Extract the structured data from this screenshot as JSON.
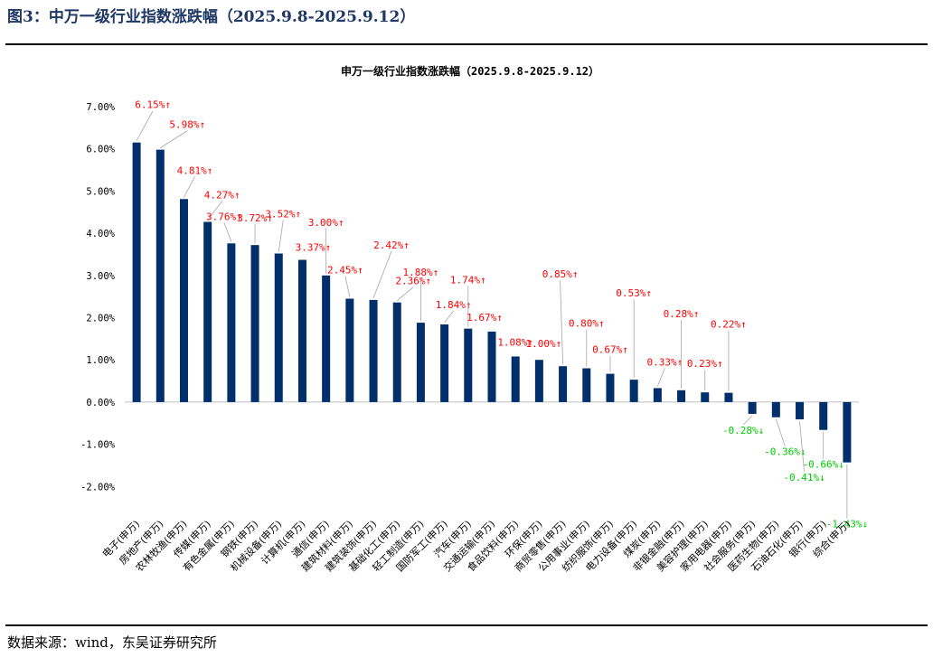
{
  "figure": {
    "title": "图3：中万一级行业指数涨跌幅（2025.9.8-2025.9.12）",
    "source": "数据来源：wind，东吴证券研究所"
  },
  "colors": {
    "bar": "#002f6c",
    "positive_label": "#ff0000",
    "negative_label": "#00cc00",
    "title": "#1f3864"
  },
  "chart_data": {
    "type": "bar",
    "title": "申万一级行业指数涨跌幅（2025.9.8-2025.9.12）",
    "xlabel": "",
    "ylabel": "",
    "ylim": [
      -2.0,
      7.0
    ],
    "yticks": [
      "7.00%",
      "6.00%",
      "5.00%",
      "4.00%",
      "3.00%",
      "2.00%",
      "1.00%",
      "0.00%",
      "-1.00%",
      "-2.00%"
    ],
    "grid": false,
    "legend": "none",
    "categories": [
      "电子(申万)",
      "房地产(申万)",
      "农林牧渔(申万)",
      "传媒(申万)",
      "有色金属(申万)",
      "钢铁(申万)",
      "机械设备(申万)",
      "计算机(申万)",
      "通信(申万)",
      "建筑材料(申万)",
      "建筑装饰(申万)",
      "基础化工(申万)",
      "轻工制造(申万)",
      "国防军工(申万)",
      "汽车(申万)",
      "交通运输(申万)",
      "食品饮料(申万)",
      "环保(申万)",
      "商贸零售(申万)",
      "公用事业(申万)",
      "纺织服饰(申万)",
      "电力设备(申万)",
      "煤炭(申万)",
      "非银金融(申万)",
      "美容护理(申万)",
      "家用电器(申万)",
      "社会服务(申万)",
      "医药生物(申万)",
      "石油石化(申万)",
      "银行(申万)",
      "综合(申万)"
    ],
    "values": [
      6.15,
      5.98,
      4.81,
      4.27,
      3.76,
      3.72,
      3.52,
      3.37,
      3.0,
      2.45,
      2.42,
      2.36,
      1.88,
      1.84,
      1.74,
      1.67,
      1.08,
      1.0,
      0.85,
      0.8,
      0.67,
      0.53,
      0.33,
      0.28,
      0.23,
      0.22,
      -0.28,
      -0.36,
      -0.41,
      -0.66,
      -1.43
    ],
    "data_labels": [
      "6.15%↑",
      "5.98%↑",
      "4.81%↑",
      "4.27%↑",
      "3.76%↑",
      "3.72%↑",
      "3.52%↑",
      "3.37%↑",
      "3.00%↑",
      "2.45%↑",
      "2.42%↑",
      "2.36%↑",
      "1.88%↑",
      "1.84%↑",
      "1.74%↑",
      "1.67%↑",
      "1.08%↑",
      "1.00%↑",
      "0.85%↑",
      "0.80%↑",
      "0.67%↑",
      "0.53%↑",
      "0.33%↑",
      "0.28%↑",
      "0.23%↑",
      "0.22%↑",
      "-0.28%↓",
      "-0.36%↓",
      "-0.41%↓",
      "-0.66%↓",
      "-1.43%↓"
    ]
  }
}
